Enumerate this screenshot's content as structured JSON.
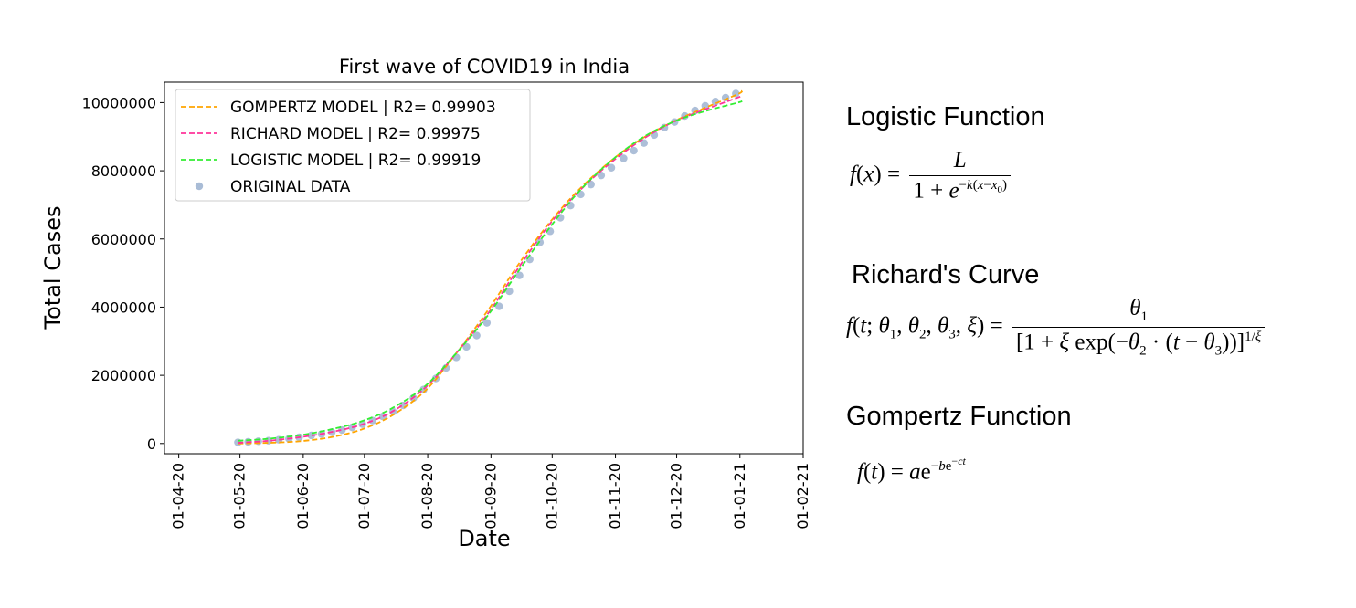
{
  "chart_data": {
    "type": "line",
    "title": "First wave of COVID19 in India",
    "xlabel": "Date",
    "ylabel": "Total Cases",
    "x_ticks": [
      "01-04-20",
      "01-05-20",
      "01-06-20",
      "01-07-20",
      "01-08-20",
      "01-09-20",
      "01-10-20",
      "01-11-20",
      "01-12-20",
      "01-01-21",
      "01-02-21"
    ],
    "y_ticks": [
      "0",
      "2000000",
      "4000000",
      "6000000",
      "8000000",
      "10000000"
    ],
    "ylim": [
      -300000,
      10600000
    ],
    "xlim": [
      "2020-03-25",
      "2021-02-01"
    ],
    "legend_position": "top-left",
    "grid": false,
    "series": [
      {
        "name": "GOMPERTZ MODEL | R2= 0.99903",
        "style": "dashed",
        "color": "#ffa500",
        "x": [
          "2020-04-30",
          "2020-05-15",
          "2020-05-31",
          "2020-06-15",
          "2020-06-30",
          "2020-07-15",
          "2020-07-31",
          "2020-08-15",
          "2020-08-31",
          "2020-09-15",
          "2020-09-30",
          "2020-10-15",
          "2020-10-31",
          "2020-11-15",
          "2020-11-30",
          "2020-12-15",
          "2020-12-31",
          "2021-01-02"
        ],
        "values": [
          0,
          20000,
          70000,
          190000,
          420000,
          840000,
          1560000,
          2650000,
          3950000,
          5300000,
          6500000,
          7500000,
          8350000,
          8980000,
          9460000,
          9850000,
          10250000,
          10350000
        ]
      },
      {
        "name": "RICHARD MODEL | R2= 0.99975",
        "style": "dashed",
        "color": "#ff3399",
        "x": [
          "2020-04-30",
          "2020-05-15",
          "2020-05-31",
          "2020-06-15",
          "2020-06-30",
          "2020-07-15",
          "2020-07-31",
          "2020-08-15",
          "2020-08-31",
          "2020-09-15",
          "2020-09-30",
          "2020-10-15",
          "2020-10-31",
          "2020-11-15",
          "2020-11-30",
          "2020-12-15",
          "2020-12-31",
          "2021-01-02"
        ],
        "values": [
          20000,
          80000,
          190000,
          340000,
          560000,
          950000,
          1650000,
          2650000,
          3850000,
          5200000,
          6450000,
          7450000,
          8300000,
          8950000,
          9450000,
          9800000,
          10150000,
          10200000
        ]
      },
      {
        "name": "LOGISTIC MODEL | R2= 0.99919",
        "style": "dashed",
        "color": "#33ee33",
        "x": [
          "2020-04-30",
          "2020-05-15",
          "2020-05-31",
          "2020-06-15",
          "2020-06-30",
          "2020-07-15",
          "2020-07-31",
          "2020-08-15",
          "2020-08-31",
          "2020-09-15",
          "2020-09-30",
          "2020-10-15",
          "2020-10-31",
          "2020-11-15",
          "2020-11-30",
          "2020-12-15",
          "2020-12-31",
          "2021-01-02"
        ],
        "values": [
          80000,
          140000,
          250000,
          420000,
          660000,
          1050000,
          1700000,
          2650000,
          3800000,
          5100000,
          6350000,
          7450000,
          8350000,
          9000000,
          9450000,
          9750000,
          10000000,
          10050000
        ]
      },
      {
        "name": "ORIGINAL DATA",
        "style": "markers",
        "color": "#a9bcd6",
        "x": [
          "2020-04-30",
          "2020-05-05",
          "2020-05-10",
          "2020-05-15",
          "2020-05-20",
          "2020-05-25",
          "2020-05-30",
          "2020-06-05",
          "2020-06-10",
          "2020-06-15",
          "2020-06-20",
          "2020-06-25",
          "2020-06-30",
          "2020-07-05",
          "2020-07-10",
          "2020-07-15",
          "2020-07-20",
          "2020-07-25",
          "2020-07-30",
          "2020-08-05",
          "2020-08-10",
          "2020-08-15",
          "2020-08-20",
          "2020-08-25",
          "2020-08-30",
          "2020-09-05",
          "2020-09-10",
          "2020-09-15",
          "2020-09-20",
          "2020-09-25",
          "2020-09-30",
          "2020-10-05",
          "2020-10-10",
          "2020-10-15",
          "2020-10-20",
          "2020-10-25",
          "2020-10-30",
          "2020-11-05",
          "2020-11-10",
          "2020-11-15",
          "2020-11-20",
          "2020-11-25",
          "2020-11-30",
          "2020-12-05",
          "2020-12-10",
          "2020-12-15",
          "2020-12-20",
          "2020-12-25",
          "2020-12-30"
        ],
        "values": [
          34000,
          49000,
          67000,
          82000,
          110000,
          140000,
          182000,
          236000,
          276000,
          333000,
          395000,
          473000,
          567000,
          673000,
          793000,
          937000,
          1118000,
          1336000,
          1584000,
          1908000,
          2215000,
          2526000,
          2836000,
          3167000,
          3539000,
          4023000,
          4465000,
          4930000,
          5400000,
          5903000,
          6225000,
          6623000,
          6979000,
          7307000,
          7597000,
          7864000,
          8089000,
          8364000,
          8591000,
          8814000,
          9050000,
          9266000,
          9431000,
          9608000,
          9767000,
          9906000,
          10031000,
          10146000,
          10266000
        ]
      }
    ]
  },
  "formulas": {
    "logistic": {
      "title": "Logistic Function"
    },
    "richard": {
      "title": "Richard's Curve"
    },
    "gompertz": {
      "title": "Gompertz Function"
    }
  }
}
